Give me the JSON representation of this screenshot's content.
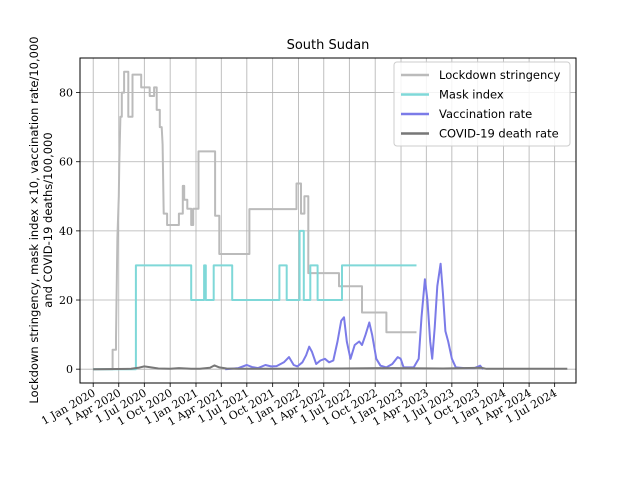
{
  "chart_data": {
    "type": "line",
    "title": "South Sudan",
    "ylabel_lines": [
      "Lockdown stringency, mask index ×10, vaccination rate/10,000",
      "and COVID-19 deaths/100,000"
    ],
    "xlabel": "",
    "ylim": [
      -4,
      90
    ],
    "yticks": [
      0,
      20,
      40,
      60,
      80
    ],
    "xlim": [
      "2019-11-15",
      "2024-09-15"
    ],
    "xticks": [
      {
        "date": "2020-01-01",
        "label": "1 Jan 2020"
      },
      {
        "date": "2020-04-01",
        "label": "1 Apr 2020"
      },
      {
        "date": "2020-07-01",
        "label": "1 Jul 2020"
      },
      {
        "date": "2020-10-01",
        "label": "1 Oct 2020"
      },
      {
        "date": "2021-01-01",
        "label": "1 Jan 2021"
      },
      {
        "date": "2021-04-01",
        "label": "1 Apr 2021"
      },
      {
        "date": "2021-07-01",
        "label": "1 Jul 2021"
      },
      {
        "date": "2021-10-01",
        "label": "1 Oct 2021"
      },
      {
        "date": "2022-01-01",
        "label": "1 Jan 2022"
      },
      {
        "date": "2022-04-01",
        "label": "1 Apr 2022"
      },
      {
        "date": "2022-07-01",
        "label": "1 Jul 2022"
      },
      {
        "date": "2022-10-01",
        "label": "1 Oct 2022"
      },
      {
        "date": "2023-01-01",
        "label": "1 Jan 2023"
      },
      {
        "date": "2023-04-01",
        "label": "1 Apr 2023"
      },
      {
        "date": "2023-07-01",
        "label": "1 Jul 2023"
      },
      {
        "date": "2023-10-01",
        "label": "1 Oct 2023"
      },
      {
        "date": "2024-01-01",
        "label": "1 Jan 2024"
      },
      {
        "date": "2024-04-01",
        "label": "1 Apr 2024"
      },
      {
        "date": "2024-07-01",
        "label": "1 Jul 2024"
      }
    ],
    "grid": true,
    "legend_position": "top-right",
    "series": [
      {
        "name": "Lockdown stringency",
        "color": "#bbbbbb",
        "width": 2,
        "points": [
          [
            "2020-01-01",
            0
          ],
          [
            "2020-03-10",
            0
          ],
          [
            "2020-03-10",
            5.6
          ],
          [
            "2020-03-22",
            5.6
          ],
          [
            "2020-03-22",
            9
          ],
          [
            "2020-03-27",
            38
          ],
          [
            "2020-04-01",
            50
          ],
          [
            "2020-04-03",
            60
          ],
          [
            "2020-04-07",
            73
          ],
          [
            "2020-04-12",
            73
          ],
          [
            "2020-04-12",
            80
          ],
          [
            "2020-04-20",
            80
          ],
          [
            "2020-04-20",
            86
          ],
          [
            "2020-05-05",
            86
          ],
          [
            "2020-05-05",
            73
          ],
          [
            "2020-05-20",
            73
          ],
          [
            "2020-05-20",
            85.2
          ],
          [
            "2020-06-20",
            85.2
          ],
          [
            "2020-06-20",
            81.5
          ],
          [
            "2020-07-20",
            81.5
          ],
          [
            "2020-07-20",
            79
          ],
          [
            "2020-08-05",
            79
          ],
          [
            "2020-08-05",
            81.5
          ],
          [
            "2020-08-14",
            81.5
          ],
          [
            "2020-08-14",
            75
          ],
          [
            "2020-08-25",
            75
          ],
          [
            "2020-08-25",
            70
          ],
          [
            "2020-09-01",
            70
          ],
          [
            "2020-09-04",
            65
          ],
          [
            "2020-09-08",
            45
          ],
          [
            "2020-09-20",
            45
          ],
          [
            "2020-09-20",
            41.7
          ],
          [
            "2020-11-01",
            41.7
          ],
          [
            "2020-11-01",
            45
          ],
          [
            "2020-11-15",
            45
          ],
          [
            "2020-11-15",
            53
          ],
          [
            "2020-11-20",
            53
          ],
          [
            "2020-11-20",
            49
          ],
          [
            "2020-12-01",
            49
          ],
          [
            "2020-12-01",
            46.4
          ],
          [
            "2020-12-15",
            46.4
          ],
          [
            "2020-12-15",
            41.7
          ],
          [
            "2020-12-22",
            41.7
          ],
          [
            "2020-12-22",
            46.4
          ],
          [
            "2021-01-10",
            46.4
          ],
          [
            "2021-01-10",
            63
          ],
          [
            "2021-03-10",
            63
          ],
          [
            "2021-03-10",
            44.4
          ],
          [
            "2021-03-25",
            44.4
          ],
          [
            "2021-03-25",
            33.3
          ],
          [
            "2021-07-10",
            33.3
          ],
          [
            "2021-07-10",
            46.3
          ],
          [
            "2021-12-25",
            46.3
          ],
          [
            "2021-12-25",
            53.7
          ],
          [
            "2022-01-10",
            53.7
          ],
          [
            "2022-01-10",
            45
          ],
          [
            "2022-01-22",
            45
          ],
          [
            "2022-01-22",
            50
          ],
          [
            "2022-02-05",
            50
          ],
          [
            "2022-02-05",
            27.8
          ],
          [
            "2022-05-25",
            27.8
          ],
          [
            "2022-05-25",
            24
          ],
          [
            "2022-08-15",
            24
          ],
          [
            "2022-08-15",
            16.4
          ],
          [
            "2022-11-10",
            16.4
          ],
          [
            "2022-11-10",
            10.7
          ],
          [
            "2023-02-25",
            10.7
          ]
        ]
      },
      {
        "name": "Mask index",
        "color": "#7fd8d8",
        "width": 2,
        "points": [
          [
            "2020-01-01",
            0
          ],
          [
            "2020-06-01",
            0
          ],
          [
            "2020-06-01",
            30
          ],
          [
            "2020-12-15",
            30
          ],
          [
            "2020-12-15",
            20
          ],
          [
            "2021-01-30",
            20
          ],
          [
            "2021-01-30",
            30
          ],
          [
            "2021-02-05",
            30
          ],
          [
            "2021-02-05",
            20
          ],
          [
            "2021-03-05",
            20
          ],
          [
            "2021-03-05",
            30
          ],
          [
            "2021-05-10",
            30
          ],
          [
            "2021-05-10",
            20
          ],
          [
            "2021-10-25",
            20
          ],
          [
            "2021-10-25",
            30
          ],
          [
            "2021-11-20",
            30
          ],
          [
            "2021-11-20",
            20
          ],
          [
            "2022-01-05",
            20
          ],
          [
            "2022-01-05",
            40
          ],
          [
            "2022-01-20",
            40
          ],
          [
            "2022-01-20",
            20
          ],
          [
            "2022-02-12",
            20
          ],
          [
            "2022-02-12",
            30
          ],
          [
            "2022-03-10",
            30
          ],
          [
            "2022-03-10",
            20
          ],
          [
            "2022-06-05",
            20
          ],
          [
            "2022-06-05",
            30
          ],
          [
            "2023-02-25",
            30
          ]
        ]
      },
      {
        "name": "Vaccination rate",
        "color": "#7b7be8",
        "width": 2,
        "points": [
          [
            "2021-04-15",
            0
          ],
          [
            "2021-06-01",
            0.3
          ],
          [
            "2021-07-01",
            1.2
          ],
          [
            "2021-07-20",
            0.6
          ],
          [
            "2021-08-10",
            0.3
          ],
          [
            "2021-09-05",
            1.2
          ],
          [
            "2021-09-25",
            0.8
          ],
          [
            "2021-10-15",
            0.9
          ],
          [
            "2021-11-10",
            2
          ],
          [
            "2021-11-28",
            3.5
          ],
          [
            "2021-12-15",
            1.2
          ],
          [
            "2021-12-28",
            0.8
          ],
          [
            "2022-01-15",
            2
          ],
          [
            "2022-01-28",
            4
          ],
          [
            "2022-02-08",
            6.5
          ],
          [
            "2022-02-18",
            5
          ],
          [
            "2022-03-05",
            1.5
          ],
          [
            "2022-03-20",
            2.5
          ],
          [
            "2022-04-05",
            3
          ],
          [
            "2022-04-20",
            2
          ],
          [
            "2022-05-05",
            2.5
          ],
          [
            "2022-05-20",
            8
          ],
          [
            "2022-06-02",
            14
          ],
          [
            "2022-06-12",
            15
          ],
          [
            "2022-06-22",
            8
          ],
          [
            "2022-07-05",
            3
          ],
          [
            "2022-07-20",
            7
          ],
          [
            "2022-08-05",
            8
          ],
          [
            "2022-08-15",
            7
          ],
          [
            "2022-08-28",
            10
          ],
          [
            "2022-09-10",
            13.5
          ],
          [
            "2022-09-20",
            10
          ],
          [
            "2022-10-05",
            3
          ],
          [
            "2022-10-20",
            1
          ],
          [
            "2022-11-10",
            0.5
          ],
          [
            "2022-12-01",
            1.5
          ],
          [
            "2022-12-20",
            3.5
          ],
          [
            "2022-12-31",
            3
          ],
          [
            "2023-01-10",
            0.5
          ],
          [
            "2023-02-15",
            0.5
          ],
          [
            "2023-03-05",
            3
          ],
          [
            "2023-03-15",
            15
          ],
          [
            "2023-03-27",
            26
          ],
          [
            "2023-04-05",
            20
          ],
          [
            "2023-04-15",
            8
          ],
          [
            "2023-04-22",
            3
          ],
          [
            "2023-05-01",
            12
          ],
          [
            "2023-05-10",
            24
          ],
          [
            "2023-05-22",
            30.5
          ],
          [
            "2023-05-30",
            22
          ],
          [
            "2023-06-08",
            11
          ],
          [
            "2023-06-18",
            8
          ],
          [
            "2023-07-01",
            3
          ],
          [
            "2023-07-15",
            0.5
          ],
          [
            "2023-08-15",
            0.3
          ],
          [
            "2023-09-20",
            0.3
          ],
          [
            "2023-10-10",
            1
          ],
          [
            "2023-10-20",
            0
          ]
        ]
      },
      {
        "name": "COVID-19 death rate",
        "color": "#777777",
        "width": 2,
        "points": [
          [
            "2020-01-01",
            0
          ],
          [
            "2020-05-15",
            0.1
          ],
          [
            "2020-06-10",
            0.4
          ],
          [
            "2020-07-01",
            0.8
          ],
          [
            "2020-07-25",
            0.5
          ],
          [
            "2020-08-20",
            0.2
          ],
          [
            "2020-10-01",
            0.1
          ],
          [
            "2020-11-01",
            0.3
          ],
          [
            "2020-12-15",
            0.1
          ],
          [
            "2021-01-15",
            0.1
          ],
          [
            "2021-02-20",
            0.4
          ],
          [
            "2021-03-08",
            1.1
          ],
          [
            "2021-03-25",
            0.5
          ],
          [
            "2021-04-20",
            0.2
          ],
          [
            "2021-06-01",
            0.1
          ],
          [
            "2021-10-01",
            0.1
          ],
          [
            "2022-06-01",
            0.2
          ],
          [
            "2022-12-01",
            0.3
          ],
          [
            "2023-06-01",
            0.2
          ],
          [
            "2023-10-15",
            0.4
          ],
          [
            "2023-11-01",
            0.1
          ],
          [
            "2024-08-15",
            0.1
          ]
        ]
      }
    ]
  }
}
